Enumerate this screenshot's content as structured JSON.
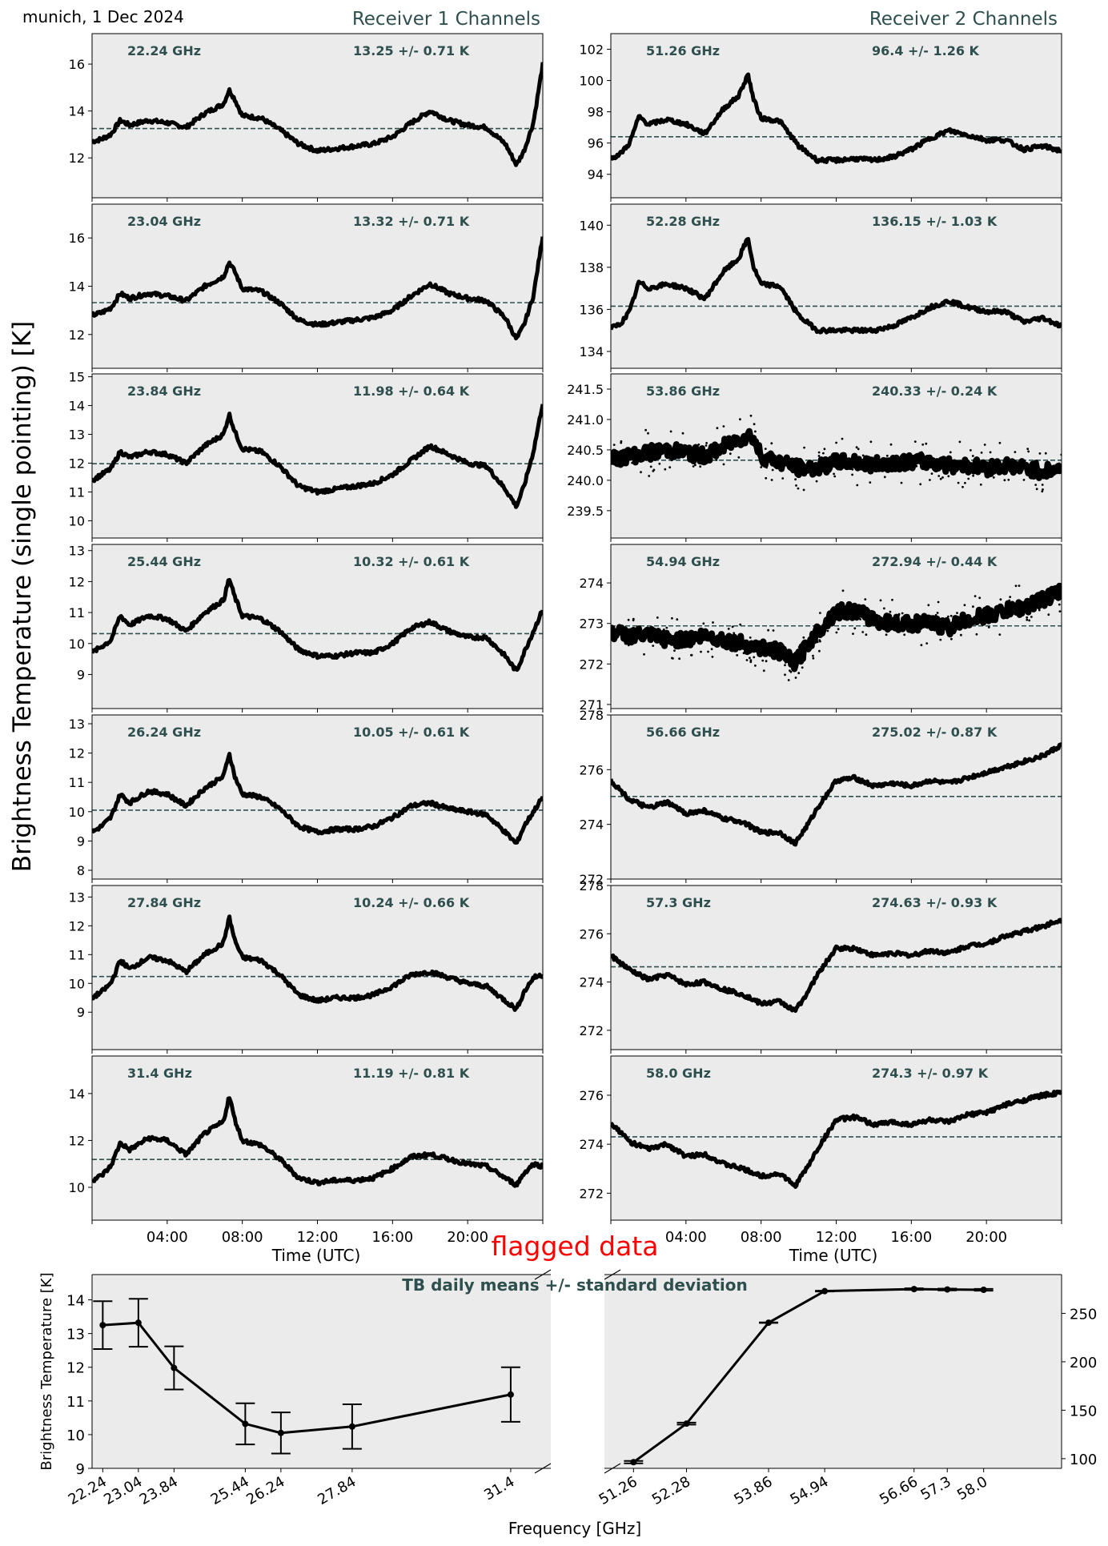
{
  "header": {
    "location_date": "munich, 1 Dec 2024",
    "receiver1_title": "Receiver 1 Channels",
    "receiver2_title": "Receiver 2 Channels",
    "y_label": "Brightness Temperature (single pointing) [K]",
    "x_label": "Time (UTC)",
    "flag_label": "flagged data"
  },
  "colors": {
    "panel_bg": "#ebebeb",
    "label": "#2f4f4f",
    "data": "#000000",
    "mean_line": "#2f4f4f",
    "flag": "#ff0000"
  },
  "time_ticks": [
    "04:00",
    "08:00",
    "12:00",
    "16:00",
    "20:00"
  ],
  "chart_data": [
    {
      "type": "line",
      "receiver": 1,
      "channel": "22.24 GHz",
      "stats": "13.25 +/- 0.71 K",
      "mean": 13.25,
      "std": 0.71,
      "ylim": [
        10.3,
        17.3
      ],
      "yticks": [
        12,
        14,
        16
      ],
      "x_hours": [
        0,
        0.5,
        1,
        1.5,
        2,
        3,
        4,
        5,
        6,
        7,
        7.3,
        7.6,
        8,
        9,
        10,
        11,
        12,
        13,
        14,
        15,
        16,
        17,
        18,
        19,
        20,
        21,
        22,
        22.6,
        23,
        23.5,
        24
      ],
      "values": [
        12.7,
        12.8,
        13.0,
        13.6,
        13.4,
        13.6,
        13.5,
        13.3,
        13.9,
        14.3,
        14.9,
        14.5,
        13.8,
        13.7,
        13.2,
        12.6,
        12.3,
        12.4,
        12.5,
        12.6,
        12.9,
        13.5,
        14.0,
        13.6,
        13.4,
        13.3,
        12.6,
        11.7,
        12.3,
        13.5,
        16.0
      ]
    },
    {
      "type": "line",
      "receiver": 1,
      "channel": "23.04 GHz",
      "stats": "13.32 +/- 0.71 K",
      "mean": 13.32,
      "std": 0.71,
      "ylim": [
        10.6,
        17.4
      ],
      "yticks": [
        12,
        14,
        16
      ],
      "x_hours": [
        0,
        0.5,
        1,
        1.5,
        2,
        3,
        4,
        5,
        6,
        7,
        7.3,
        7.6,
        8,
        9,
        10,
        11,
        12,
        13,
        14,
        15,
        16,
        17,
        18,
        19,
        20,
        21,
        22,
        22.6,
        23,
        23.5,
        24
      ],
      "values": [
        12.8,
        12.9,
        13.1,
        13.7,
        13.5,
        13.7,
        13.6,
        13.4,
        14.0,
        14.4,
        15.0,
        14.6,
        13.9,
        13.8,
        13.3,
        12.6,
        12.4,
        12.5,
        12.6,
        12.7,
        13.0,
        13.6,
        14.1,
        13.7,
        13.5,
        13.4,
        12.7,
        11.8,
        12.4,
        13.6,
        16.1
      ]
    },
    {
      "type": "line",
      "receiver": 1,
      "channel": "23.84 GHz",
      "stats": "11.98 +/- 0.64 K",
      "mean": 11.98,
      "std": 0.64,
      "ylim": [
        9.4,
        15.1
      ],
      "yticks": [
        10,
        11,
        12,
        13,
        14,
        15
      ],
      "x_hours": [
        0,
        0.5,
        1,
        1.5,
        2,
        3,
        4,
        5,
        6,
        7,
        7.3,
        7.6,
        8,
        9,
        10,
        11,
        12,
        13,
        14,
        15,
        16,
        17,
        18,
        19,
        20,
        21,
        22,
        22.6,
        23,
        23.5,
        24
      ],
      "values": [
        11.4,
        11.6,
        11.8,
        12.4,
        12.2,
        12.4,
        12.3,
        12.0,
        12.6,
        13.0,
        13.7,
        13.1,
        12.5,
        12.4,
        11.9,
        11.2,
        11.0,
        11.1,
        11.2,
        11.3,
        11.6,
        12.1,
        12.6,
        12.3,
        12.0,
        11.9,
        11.1,
        10.5,
        11.2,
        12.4,
        14.1
      ]
    },
    {
      "type": "line",
      "receiver": 1,
      "channel": "25.44 GHz",
      "stats": "10.32 +/- 0.61 K",
      "mean": 10.32,
      "std": 0.61,
      "ylim": [
        7.9,
        13.2
      ],
      "yticks": [
        9,
        10,
        11,
        12,
        13
      ],
      "x_hours": [
        0,
        0.5,
        1,
        1.5,
        2,
        3,
        4,
        5,
        6,
        7,
        7.3,
        7.6,
        8,
        9,
        10,
        11,
        12,
        13,
        14,
        15,
        16,
        17,
        18,
        19,
        20,
        21,
        22,
        22.6,
        23,
        23.5,
        24
      ],
      "values": [
        9.7,
        9.9,
        10.1,
        10.9,
        10.6,
        10.9,
        10.8,
        10.4,
        11.0,
        11.4,
        12.1,
        11.5,
        10.9,
        10.8,
        10.4,
        9.8,
        9.6,
        9.6,
        9.7,
        9.7,
        10.0,
        10.5,
        10.7,
        10.4,
        10.2,
        10.2,
        9.6,
        9.1,
        9.7,
        10.4,
        11.1
      ]
    },
    {
      "type": "line",
      "receiver": 1,
      "channel": "26.24 GHz",
      "stats": "10.05 +/- 0.61 K",
      "mean": 10.05,
      "std": 0.61,
      "ylim": [
        7.7,
        13.3
      ],
      "yticks": [
        8,
        9,
        10,
        11,
        12,
        13
      ],
      "x_hours": [
        0,
        0.5,
        1,
        1.5,
        2,
        3,
        4,
        5,
        6,
        7,
        7.3,
        7.6,
        8,
        9,
        10,
        11,
        12,
        13,
        14,
        15,
        16,
        17,
        18,
        19,
        20,
        21,
        22,
        22.6,
        23,
        23.5,
        24
      ],
      "values": [
        9.3,
        9.5,
        9.8,
        10.6,
        10.3,
        10.7,
        10.6,
        10.2,
        10.8,
        11.2,
        12.0,
        11.2,
        10.6,
        10.5,
        10.1,
        9.5,
        9.3,
        9.4,
        9.4,
        9.5,
        9.8,
        10.2,
        10.3,
        10.1,
        10.0,
        9.9,
        9.3,
        8.9,
        9.5,
        10.0,
        10.5
      ]
    },
    {
      "type": "line",
      "receiver": 1,
      "channel": "27.84 GHz",
      "stats": "10.24 +/- 0.66 K",
      "mean": 10.24,
      "std": 0.66,
      "ylim": [
        7.7,
        13.4
      ],
      "yticks": [
        9,
        10,
        11,
        12,
        13
      ],
      "x_hours": [
        0,
        0.5,
        1,
        1.5,
        2,
        3,
        4,
        5,
        6,
        7,
        7.3,
        7.6,
        8,
        9,
        10,
        11,
        12,
        13,
        14,
        15,
        16,
        17,
        18,
        19,
        20,
        21,
        22,
        22.6,
        23,
        23.5,
        24
      ],
      "values": [
        9.5,
        9.7,
        10.0,
        10.8,
        10.5,
        10.9,
        10.8,
        10.4,
        11.0,
        11.4,
        12.3,
        11.5,
        10.9,
        10.8,
        10.3,
        9.6,
        9.4,
        9.5,
        9.5,
        9.6,
        9.9,
        10.3,
        10.4,
        10.2,
        10.0,
        9.9,
        9.4,
        9.1,
        9.7,
        10.2,
        10.3
      ]
    },
    {
      "type": "line",
      "receiver": 1,
      "channel": "31.4 GHz",
      "stats": "11.19 +/- 0.81 K",
      "mean": 11.19,
      "std": 0.81,
      "ylim": [
        8.6,
        15.6
      ],
      "yticks": [
        10,
        12,
        14
      ],
      "x_hours": [
        0,
        0.5,
        1,
        1.5,
        2,
        3,
        4,
        5,
        6,
        7,
        7.3,
        7.6,
        8,
        9,
        10,
        11,
        12,
        13,
        14,
        15,
        16,
        17,
        18,
        19,
        20,
        21,
        22,
        22.6,
        23,
        23.5,
        24
      ],
      "values": [
        10.3,
        10.5,
        10.9,
        11.9,
        11.6,
        12.1,
        12.0,
        11.4,
        12.3,
        12.8,
        13.9,
        12.9,
        12.0,
        11.8,
        11.2,
        10.4,
        10.2,
        10.3,
        10.3,
        10.4,
        10.8,
        11.3,
        11.4,
        11.2,
        11.0,
        10.9,
        10.4,
        10.1,
        10.6,
        11.0,
        10.9
      ]
    },
    {
      "type": "line",
      "receiver": 2,
      "channel": "51.26 GHz",
      "stats": "96.4 +/- 1.26 K",
      "mean": 96.4,
      "std": 1.26,
      "ylim": [
        92.5,
        103.0
      ],
      "yticks": [
        94,
        96,
        98,
        100,
        102
      ],
      "x_hours": [
        0,
        0.5,
        1,
        1.5,
        2,
        3,
        4,
        5,
        6,
        6.8,
        7.3,
        7.6,
        8,
        9,
        10,
        11,
        12,
        13,
        14,
        15,
        16,
        17,
        18,
        19,
        20,
        21,
        22,
        23,
        24
      ],
      "values": [
        95.0,
        95.3,
        96.0,
        97.7,
        97.2,
        97.5,
        97.2,
        96.6,
        98.2,
        99.0,
        100.4,
        98.8,
        97.6,
        97.4,
        95.8,
        94.9,
        94.9,
        95.0,
        94.9,
        95.1,
        95.6,
        96.3,
        96.8,
        96.5,
        96.2,
        96.2,
        95.6,
        95.8,
        95.5
      ]
    },
    {
      "type": "line",
      "receiver": 2,
      "channel": "52.28 GHz",
      "stats": "136.15 +/- 1.03 K",
      "mean": 136.15,
      "std": 1.03,
      "ylim": [
        133.2,
        141.0
      ],
      "yticks": [
        134,
        136,
        138,
        140
      ],
      "x_hours": [
        0,
        0.5,
        1,
        1.5,
        2,
        3,
        4,
        5,
        6,
        6.8,
        7.3,
        7.6,
        8,
        9,
        10,
        11,
        12,
        13,
        14,
        15,
        16,
        17,
        18,
        19,
        20,
        21,
        22,
        23,
        24
      ],
      "values": [
        135.1,
        135.3,
        135.9,
        137.3,
        137.0,
        137.2,
        137.0,
        136.5,
        137.8,
        138.4,
        139.4,
        138.0,
        137.2,
        137.1,
        135.7,
        135.0,
        135.0,
        135.0,
        135.0,
        135.2,
        135.6,
        136.1,
        136.4,
        136.1,
        135.9,
        135.9,
        135.4,
        135.6,
        135.2
      ]
    },
    {
      "type": "scatter",
      "receiver": 2,
      "channel": "53.86 GHz",
      "stats": "240.33 +/- 0.24 K",
      "mean": 240.33,
      "std": 0.24,
      "ylim": [
        239.05,
        241.75
      ],
      "yticks": [
        239.5,
        240.0,
        240.5,
        241.0,
        241.5
      ],
      "tick_decimals": 1,
      "x_hours": [
        0,
        1,
        2,
        3,
        4,
        5,
        6,
        7,
        7.5,
        8,
        9,
        10,
        11,
        12,
        13,
        14,
        15,
        16,
        17,
        18,
        19,
        20,
        21,
        22,
        23,
        24
      ],
      "values": [
        240.35,
        240.4,
        240.45,
        240.5,
        240.45,
        240.4,
        240.55,
        240.7,
        240.75,
        240.4,
        240.3,
        240.2,
        240.2,
        240.3,
        240.3,
        240.25,
        240.3,
        240.3,
        240.3,
        240.25,
        240.25,
        240.2,
        240.25,
        240.2,
        240.15,
        240.2
      ]
    },
    {
      "type": "scatter",
      "receiver": 2,
      "channel": "54.94 GHz",
      "stats": "272.94 +/- 0.44 K",
      "mean": 272.94,
      "std": 0.44,
      "ylim": [
        270.9,
        274.95
      ],
      "yticks": [
        271,
        272,
        273,
        274
      ],
      "x_hours": [
        0,
        1,
        2,
        3,
        4,
        5,
        6,
        7,
        8,
        9,
        9.8,
        10.5,
        11,
        12,
        13,
        14,
        15,
        16,
        17,
        18,
        19,
        20,
        21,
        22,
        23,
        24
      ],
      "values": [
        272.8,
        272.7,
        272.7,
        272.6,
        272.6,
        272.7,
        272.6,
        272.5,
        272.4,
        272.3,
        272.0,
        272.5,
        272.8,
        273.3,
        273.3,
        273.1,
        273.0,
        273.0,
        273.0,
        272.9,
        273.1,
        273.2,
        273.3,
        273.4,
        273.6,
        273.8
      ]
    },
    {
      "type": "line",
      "receiver": 2,
      "channel": "56.66 GHz",
      "stats": "275.02 +/- 0.87 K",
      "mean": 275.02,
      "std": 0.87,
      "ylim": [
        272.0,
        278.0
      ],
      "yticks": [
        272,
        274,
        276,
        278
      ],
      "x_hours": [
        0,
        1,
        2,
        3,
        4,
        5,
        6,
        7,
        8,
        9,
        9.8,
        10.5,
        11,
        12,
        13,
        14,
        15,
        16,
        17,
        18,
        19,
        20,
        21,
        22,
        23,
        24
      ],
      "values": [
        275.6,
        274.9,
        274.6,
        274.8,
        274.4,
        274.5,
        274.2,
        274.1,
        273.7,
        273.7,
        273.3,
        274.0,
        274.6,
        275.6,
        275.7,
        275.4,
        275.5,
        275.4,
        275.6,
        275.5,
        275.7,
        275.9,
        276.1,
        276.3,
        276.5,
        276.9
      ]
    },
    {
      "type": "line",
      "receiver": 2,
      "channel": "57.3 GHz",
      "stats": "274.63 +/- 0.93 K",
      "mean": 274.63,
      "std": 0.93,
      "ylim": [
        271.2,
        278.0
      ],
      "yticks": [
        272,
        274,
        276,
        278
      ],
      "x_hours": [
        0,
        1,
        2,
        3,
        4,
        5,
        6,
        7,
        8,
        9,
        9.8,
        10.5,
        11,
        12,
        13,
        14,
        15,
        16,
        17,
        18,
        19,
        20,
        21,
        22,
        23,
        24
      ],
      "values": [
        275.1,
        274.5,
        274.1,
        274.3,
        273.9,
        274.0,
        273.7,
        273.5,
        273.1,
        273.2,
        272.8,
        273.6,
        274.3,
        275.4,
        275.4,
        275.1,
        275.2,
        275.1,
        275.3,
        275.2,
        275.5,
        275.6,
        275.9,
        276.1,
        276.3,
        276.6
      ]
    },
    {
      "type": "line",
      "receiver": 2,
      "channel": "58.0 GHz",
      "stats": "274.3 +/- 0.97 K",
      "mean": 274.3,
      "std": 0.97,
      "ylim": [
        270.9,
        277.6
      ],
      "yticks": [
        272,
        274,
        276
      ],
      "x_hours": [
        0,
        1,
        2,
        3,
        4,
        5,
        6,
        7,
        8,
        9,
        9.8,
        10.5,
        11,
        12,
        13,
        14,
        15,
        16,
        17,
        18,
        19,
        20,
        21,
        22,
        23,
        24
      ],
      "values": [
        274.9,
        274.1,
        273.8,
        274.0,
        273.5,
        273.6,
        273.2,
        273.0,
        272.7,
        272.8,
        272.3,
        273.1,
        273.8,
        275.0,
        275.1,
        274.8,
        274.9,
        274.8,
        275.0,
        274.9,
        275.2,
        275.3,
        275.6,
        275.8,
        276.0,
        276.1
      ]
    },
    {
      "type": "line",
      "title": "TB daily means +/- standard deviation",
      "xlabel": "Frequency [GHz]",
      "ylabel": "Brightness Temperature [K]",
      "left_axis": {
        "ylim": [
          9.0,
          14.75
        ],
        "yticks": [
          9,
          10,
          11,
          12,
          13,
          14
        ],
        "xlim": [
          22.0,
          32.3
        ],
        "x": [
          22.24,
          23.04,
          23.84,
          25.44,
          26.24,
          27.84,
          31.4
        ],
        "tick_labels": [
          "22.24",
          "23.04",
          "23.84",
          "25.44",
          "26.24",
          "27.84",
          "31.4"
        ],
        "means": [
          13.25,
          13.32,
          11.98,
          10.32,
          10.05,
          10.24,
          11.19
        ],
        "stds": [
          0.71,
          0.71,
          0.64,
          0.61,
          0.61,
          0.66,
          0.81
        ]
      },
      "right_axis": {
        "ylim": [
          90,
          290
        ],
        "yticks": [
          100,
          150,
          200,
          250
        ],
        "xlim": [
          50.7,
          59.5
        ],
        "x": [
          51.26,
          52.28,
          53.86,
          54.94,
          56.66,
          57.3,
          58.0
        ],
        "tick_labels": [
          "51.26",
          "52.28",
          "53.86",
          "54.94",
          "56.66",
          "57.3",
          "58.0"
        ],
        "means": [
          96.4,
          136.15,
          240.33,
          272.94,
          275.02,
          274.63,
          274.3
        ],
        "stds": [
          1.26,
          1.03,
          0.24,
          0.44,
          0.87,
          0.93,
          0.97
        ]
      }
    }
  ]
}
